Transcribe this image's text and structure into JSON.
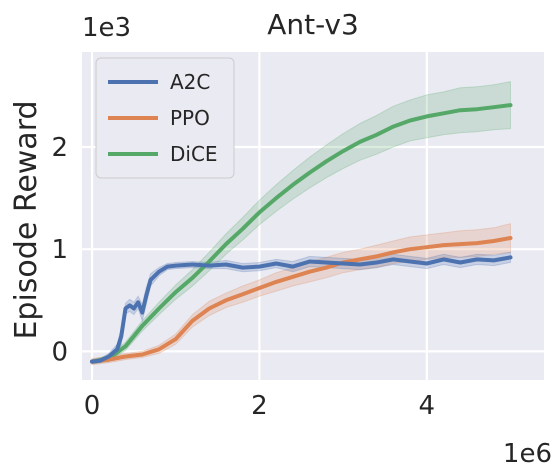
{
  "chart_data": {
    "type": "line",
    "title": "Ant-v3",
    "xlabel": "",
    "ylabel": "Episode Reward",
    "x_multiplier_label": "1e6",
    "y_multiplier_label": "1e3",
    "xlim": [
      -0.12,
      5.4
    ],
    "ylim": [
      -0.28,
      2.93
    ],
    "xticks": [
      0,
      2,
      4
    ],
    "yticks": [
      0,
      1,
      2
    ],
    "grid": true,
    "legend_position": "top-left",
    "series": [
      {
        "name": "A2C",
        "color": "#4c72b0",
        "x": [
          0.0,
          0.1,
          0.2,
          0.3,
          0.35,
          0.4,
          0.45,
          0.5,
          0.55,
          0.6,
          0.65,
          0.7,
          0.8,
          0.9,
          1.0,
          1.2,
          1.4,
          1.6,
          1.8,
          2.0,
          2.2,
          2.4,
          2.6,
          2.8,
          3.0,
          3.2,
          3.4,
          3.6,
          3.8,
          4.0,
          4.2,
          4.4,
          4.6,
          4.8,
          5.0
        ],
        "y": [
          -0.1,
          -0.09,
          -0.05,
          0.02,
          0.15,
          0.42,
          0.45,
          0.42,
          0.48,
          0.38,
          0.55,
          0.7,
          0.78,
          0.83,
          0.84,
          0.85,
          0.84,
          0.85,
          0.82,
          0.83,
          0.86,
          0.83,
          0.88,
          0.87,
          0.86,
          0.85,
          0.87,
          0.9,
          0.88,
          0.86,
          0.9,
          0.87,
          0.9,
          0.89,
          0.92
        ],
        "band": [
          0.02,
          0.02,
          0.03,
          0.05,
          0.08,
          0.05,
          0.06,
          0.06,
          0.06,
          0.08,
          0.08,
          0.06,
          0.04,
          0.03,
          0.03,
          0.03,
          0.03,
          0.04,
          0.04,
          0.04,
          0.04,
          0.05,
          0.05,
          0.05,
          0.05,
          0.05,
          0.05,
          0.05,
          0.05,
          0.05,
          0.05,
          0.05,
          0.05,
          0.05,
          0.05
        ]
      },
      {
        "name": "PPO",
        "color": "#dd8452",
        "x": [
          0.0,
          0.2,
          0.4,
          0.6,
          0.8,
          1.0,
          1.2,
          1.4,
          1.6,
          1.8,
          2.0,
          2.2,
          2.4,
          2.6,
          2.8,
          3.0,
          3.2,
          3.4,
          3.6,
          3.8,
          4.0,
          4.2,
          4.4,
          4.6,
          4.8,
          5.0
        ],
        "y": [
          -0.1,
          -0.08,
          -0.05,
          -0.03,
          0.02,
          0.12,
          0.3,
          0.42,
          0.5,
          0.56,
          0.62,
          0.68,
          0.73,
          0.78,
          0.82,
          0.87,
          0.9,
          0.93,
          0.97,
          1.0,
          1.02,
          1.04,
          1.05,
          1.06,
          1.08,
          1.11
        ],
        "band": [
          0.03,
          0.03,
          0.03,
          0.03,
          0.04,
          0.05,
          0.06,
          0.07,
          0.07,
          0.08,
          0.08,
          0.09,
          0.09,
          0.1,
          0.1,
          0.1,
          0.1,
          0.11,
          0.11,
          0.12,
          0.12,
          0.12,
          0.13,
          0.13,
          0.13,
          0.14
        ]
      },
      {
        "name": "DiCE",
        "color": "#55a868",
        "x": [
          0.0,
          0.2,
          0.4,
          0.6,
          0.8,
          1.0,
          1.2,
          1.4,
          1.6,
          1.8,
          2.0,
          2.2,
          2.4,
          2.6,
          2.8,
          3.0,
          3.2,
          3.4,
          3.6,
          3.8,
          4.0,
          4.2,
          4.4,
          4.6,
          4.8,
          5.0
        ],
        "y": [
          -0.1,
          -0.07,
          0.05,
          0.25,
          0.42,
          0.58,
          0.72,
          0.88,
          1.05,
          1.2,
          1.36,
          1.5,
          1.63,
          1.75,
          1.86,
          1.96,
          2.05,
          2.12,
          2.2,
          2.26,
          2.3,
          2.33,
          2.36,
          2.37,
          2.39,
          2.41
        ],
        "band": [
          0.02,
          0.03,
          0.04,
          0.05,
          0.06,
          0.07,
          0.08,
          0.09,
          0.1,
          0.11,
          0.12,
          0.13,
          0.14,
          0.15,
          0.16,
          0.17,
          0.18,
          0.19,
          0.2,
          0.2,
          0.21,
          0.21,
          0.22,
          0.22,
          0.22,
          0.23
        ]
      }
    ]
  }
}
